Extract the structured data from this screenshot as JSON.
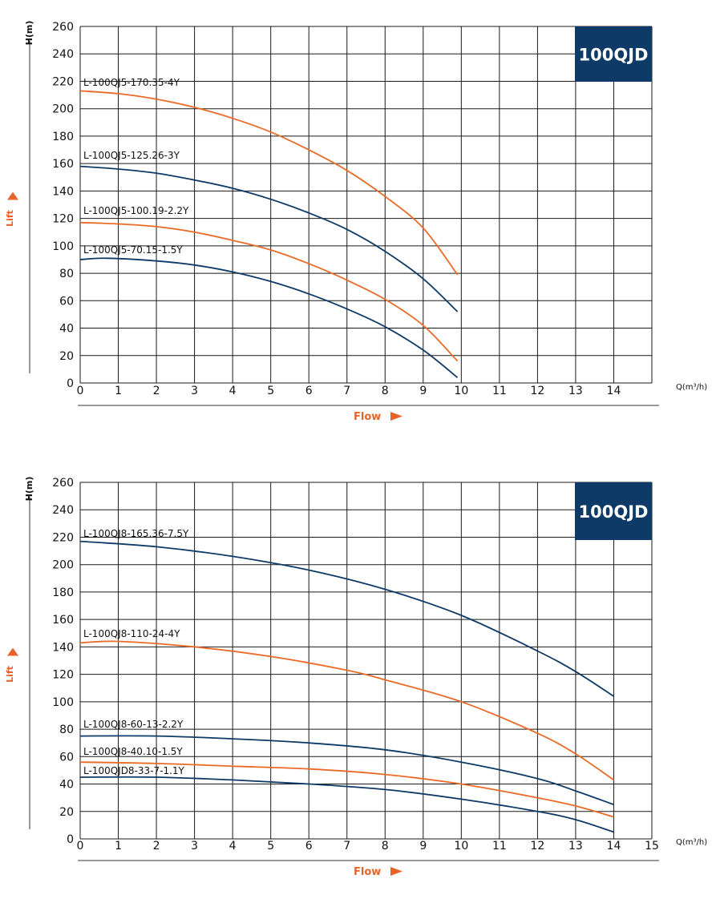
{
  "colors": {
    "navy": "#0d3a66",
    "orange": "#ea6a26",
    "grid": "#1a1a1a",
    "axis_title": "#e8632a"
  },
  "chart_data": [
    {
      "type": "line",
      "badge": "100QJD",
      "ylabel": "H(m)",
      "side_label": "Lift",
      "xlabel": "Flow",
      "x_unit_label": "Q(m³/h)",
      "xlim": [
        0,
        15
      ],
      "ylim": [
        0,
        260
      ],
      "x_ticks": [
        0,
        1,
        2,
        3,
        4,
        5,
        6,
        7,
        8,
        9,
        10,
        11,
        12,
        13,
        14
      ],
      "y_ticks": [
        0,
        20,
        40,
        60,
        80,
        100,
        120,
        140,
        160,
        180,
        200,
        220,
        240,
        260
      ],
      "series": [
        {
          "name": "L-100QJ5-170.35-4Y",
          "color": "orange",
          "points": [
            [
              0,
              213
            ],
            [
              1,
              211
            ],
            [
              2,
              207
            ],
            [
              3,
              201
            ],
            [
              4,
              193
            ],
            [
              5,
              183
            ],
            [
              6,
              170
            ],
            [
              7,
              155
            ],
            [
              8,
              136
            ],
            [
              9,
              113
            ],
            [
              9.9,
              79
            ]
          ]
        },
        {
          "name": "L-100QJ5-125.26-3Y",
          "color": "navy",
          "points": [
            [
              0,
              158
            ],
            [
              1,
              156
            ],
            [
              2,
              153
            ],
            [
              3,
              148
            ],
            [
              4,
              142
            ],
            [
              5,
              134
            ],
            [
              6,
              124
            ],
            [
              7,
              112
            ],
            [
              8,
              96
            ],
            [
              9,
              76
            ],
            [
              9.9,
              52
            ]
          ]
        },
        {
          "name": "L-100QJ5-100.19-2.2Y",
          "color": "orange",
          "points": [
            [
              0,
              117
            ],
            [
              1,
              116
            ],
            [
              2,
              114
            ],
            [
              3,
              110
            ],
            [
              4,
              104
            ],
            [
              5,
              97
            ],
            [
              6,
              87
            ],
            [
              7,
              75
            ],
            [
              8,
              61
            ],
            [
              9,
              42
            ],
            [
              9.9,
              16
            ]
          ]
        },
        {
          "name": "L-100QJ5-70.15-1.5Y",
          "color": "navy",
          "points": [
            [
              0,
              90
            ],
            [
              0.7,
              91
            ],
            [
              2,
              89
            ],
            [
              3,
              86
            ],
            [
              4,
              81
            ],
            [
              5,
              74
            ],
            [
              6,
              65
            ],
            [
              7,
              54
            ],
            [
              8,
              41
            ],
            [
              9,
              24
            ],
            [
              9.9,
              4
            ]
          ]
        }
      ]
    },
    {
      "type": "line",
      "badge": "100QJD",
      "ylabel": "H(m)",
      "side_label": "Lift",
      "xlabel": "Flow",
      "x_unit_label": "Q(m³/h)",
      "xlim": [
        0,
        15
      ],
      "ylim": [
        0,
        260
      ],
      "x_ticks": [
        0,
        1,
        2,
        3,
        4,
        5,
        6,
        7,
        8,
        9,
        10,
        11,
        12,
        13,
        14,
        15
      ],
      "y_ticks": [
        0,
        20,
        40,
        60,
        80,
        100,
        120,
        140,
        160,
        180,
        200,
        220,
        240,
        260
      ],
      "series": [
        {
          "name": "L-100QJ8-165.36-7.5Y",
          "color": "navy",
          "points": [
            [
              0,
              217
            ],
            [
              2,
              213
            ],
            [
              4,
              206
            ],
            [
              6,
              196
            ],
            [
              8,
              182
            ],
            [
              10,
              163
            ],
            [
              12,
              137
            ],
            [
              13,
              122
            ],
            [
              14,
              104
            ]
          ]
        },
        {
          "name": "L-100QJ8-110-24-4Y",
          "color": "orange",
          "points": [
            [
              0,
              143
            ],
            [
              1,
              144
            ],
            [
              3,
              140
            ],
            [
              5,
              133
            ],
            [
              7,
              123
            ],
            [
              8,
              116
            ],
            [
              10,
              100
            ],
            [
              12,
              77
            ],
            [
              13,
              62
            ],
            [
              14,
              43
            ]
          ]
        },
        {
          "name": "L-100QJ8-60-13-2.2Y",
          "color": "navy",
          "points": [
            [
              0,
              75
            ],
            [
              2,
              75
            ],
            [
              4,
              73
            ],
            [
              6,
              70
            ],
            [
              8,
              65
            ],
            [
              10,
              56
            ],
            [
              12,
              44
            ],
            [
              13,
              35
            ],
            [
              14,
              25
            ]
          ]
        },
        {
          "name": "L-100QJ8-40.10-1.5Y",
          "color": "orange",
          "points": [
            [
              0,
              56
            ],
            [
              2,
              55
            ],
            [
              4,
              53
            ],
            [
              6,
              51
            ],
            [
              8,
              47
            ],
            [
              10,
              40
            ],
            [
              12,
              30
            ],
            [
              13,
              24
            ],
            [
              14,
              16
            ]
          ]
        },
        {
          "name": "L-100QJD8-33-7-1.1Y",
          "color": "navy",
          "points": [
            [
              0,
              45
            ],
            [
              2,
              45
            ],
            [
              4,
              43
            ],
            [
              6,
              40
            ],
            [
              8,
              36
            ],
            [
              10,
              29
            ],
            [
              12,
              20
            ],
            [
              13,
              14
            ],
            [
              14,
              5
            ]
          ]
        }
      ]
    }
  ]
}
